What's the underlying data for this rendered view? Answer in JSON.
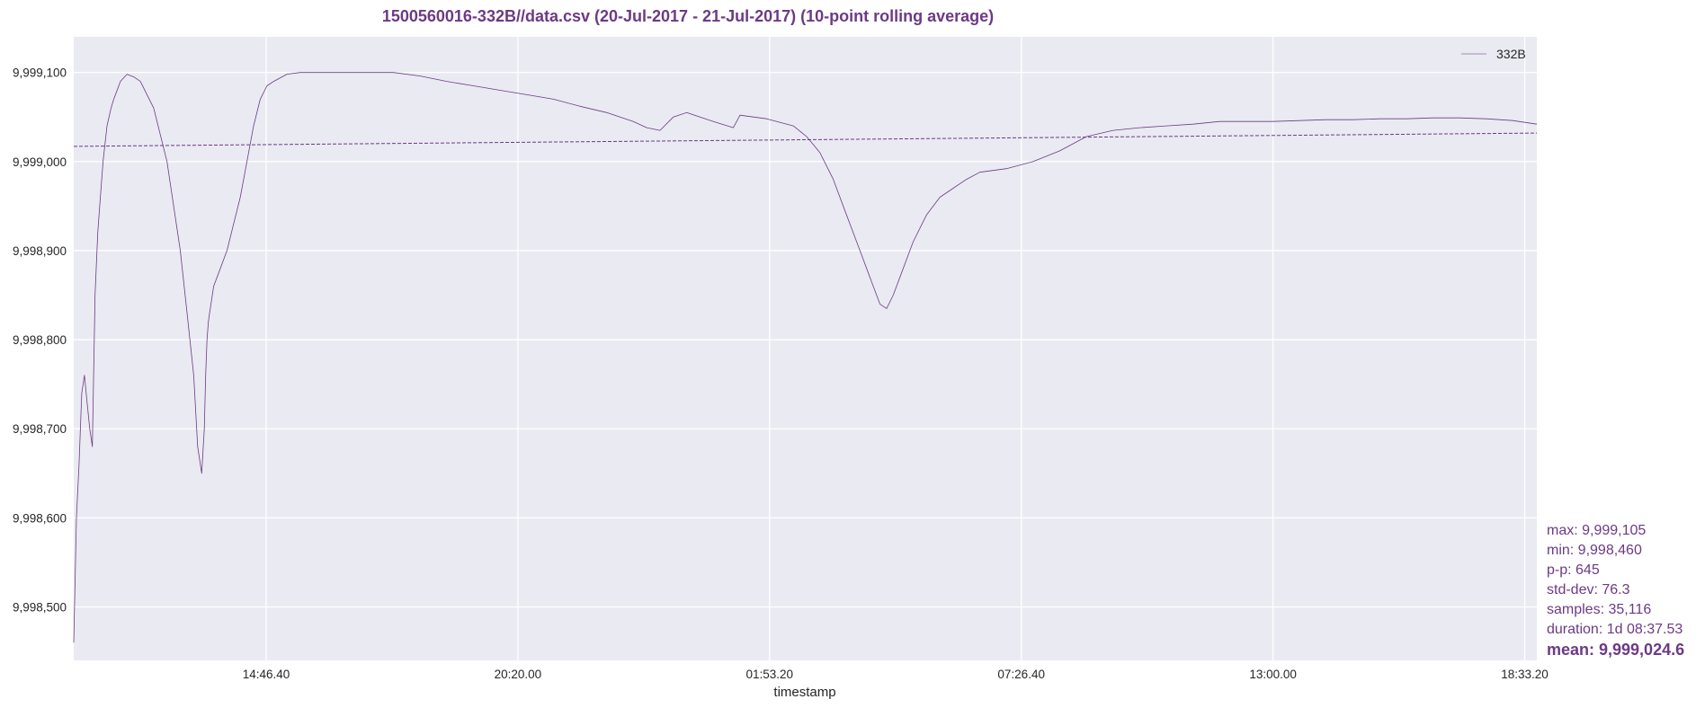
{
  "colors": {
    "accent": "#6c3a84",
    "plot_bg": "#eaeaf2",
    "grid": "#ffffff"
  },
  "stats": {
    "max": "max: 9,999,105",
    "min": "min: 9,998,460",
    "pp": "p-p: 645",
    "std": "std-dev: 76.3",
    "samples": "samples: 35,116",
    "duration": "duration: 1d 08:37.53",
    "mean": "mean: 9,999,024.6"
  },
  "chart_data": {
    "type": "line",
    "title": "1500560016-332B//data.csv (20-Jul-2017 - 21-Jul-2017) (10-point rolling average)",
    "xlabel": "timestamp",
    "ylabel": "",
    "grid": true,
    "legend": {
      "position": "top-right",
      "entries": [
        "332B"
      ]
    },
    "x_unit": "hours",
    "xlim": [
      10.0,
      20.98
    ],
    "ylim": [
      9998440,
      9999140
    ],
    "x_ticks": [
      {
        "value": 11.444,
        "label": "14:46.40"
      },
      {
        "value": 13.333,
        "label": "20:20.00"
      },
      {
        "value": 15.222,
        "label": "01:53.20"
      },
      {
        "value": 17.111,
        "label": "07:26.40"
      },
      {
        "value": 19.0,
        "label": "13:00.00"
      },
      {
        "value": 20.889,
        "label": "18:33.20"
      }
    ],
    "y_ticks": [
      {
        "value": 9998500,
        "label": "9,998,500"
      },
      {
        "value": 9998600,
        "label": "9,998,600"
      },
      {
        "value": 9998700,
        "label": "9,998,700"
      },
      {
        "value": 9998800,
        "label": "9,998,800"
      },
      {
        "value": 9998900,
        "label": "9,998,900"
      },
      {
        "value": 9999000,
        "label": "9,999,000"
      },
      {
        "value": 9999100,
        "label": "9,999,100"
      }
    ],
    "series": [
      {
        "name": "332B",
        "x": [
          10.0,
          10.02,
          10.04,
          10.06,
          10.08,
          10.1,
          10.12,
          10.14,
          10.16,
          10.18,
          10.2,
          10.22,
          10.25,
          10.28,
          10.3,
          10.35,
          10.4,
          10.45,
          10.5,
          10.6,
          10.7,
          10.8,
          10.85,
          10.9,
          10.93,
          10.96,
          10.98,
          10.99,
          11.0,
          11.01,
          11.02,
          11.05,
          11.1,
          11.15,
          11.2,
          11.25,
          11.3,
          11.35,
          11.4,
          11.45,
          11.5,
          11.6,
          11.7,
          11.8,
          12.0,
          12.2,
          12.4,
          12.6,
          12.8,
          13.0,
          13.2,
          13.4,
          13.6,
          13.8,
          14.0,
          14.2,
          14.3,
          14.4,
          14.5,
          14.6,
          14.8,
          14.95,
          15.0,
          15.2,
          15.4,
          15.5,
          15.6,
          15.7,
          15.8,
          15.9,
          15.95,
          16.0,
          16.05,
          16.1,
          16.15,
          16.2,
          16.3,
          16.4,
          16.5,
          16.6,
          16.7,
          16.8,
          17.0,
          17.2,
          17.4,
          17.6,
          17.8,
          18.0,
          18.2,
          18.4,
          18.6,
          18.8,
          19.0,
          19.2,
          19.4,
          19.6,
          19.8,
          20.0,
          20.2,
          20.4,
          20.6,
          20.8,
          20.98
        ],
        "values": [
          9998460,
          9998600,
          9998660,
          9998740,
          9998760,
          9998730,
          9998700,
          9998680,
          9998850,
          9998920,
          9998960,
          9999000,
          9999040,
          9999060,
          9999070,
          9999090,
          9999098,
          9999095,
          9999090,
          9999060,
          9999000,
          9998900,
          9998830,
          9998760,
          9998680,
          9998650,
          9998700,
          9998760,
          9998800,
          9998820,
          9998830,
          9998860,
          9998880,
          9998900,
          9998930,
          9998960,
          9999000,
          9999040,
          9999070,
          9999085,
          9999090,
          9999098,
          9999100,
          9999100,
          9999100,
          9999100,
          9999100,
          9999096,
          9999090,
          9999085,
          9999080,
          9999075,
          9999070,
          9999062,
          9999055,
          9999045,
          9999038,
          9999035,
          9999050,
          9999055,
          9999045,
          9999038,
          9999052,
          9999048,
          9999040,
          9999028,
          9999010,
          9998980,
          9998940,
          9998900,
          9998880,
          9998860,
          9998840,
          9998835,
          9998850,
          9998870,
          9998910,
          9998940,
          9998960,
          9998970,
          9998980,
          9998988,
          9998992,
          9999000,
          9999012,
          9999028,
          9999035,
          9999038,
          9999040,
          9999042,
          9999045,
          9999045,
          9999045,
          9999046,
          9999047,
          9999047,
          9999048,
          9999048,
          9999049,
          9999049,
          9999048,
          9999046,
          9999042
        ]
      },
      {
        "name": "",
        "style": "dashed",
        "x": [
          10.0,
          20.98
        ],
        "values": [
          9999017,
          9999032
        ]
      }
    ]
  }
}
